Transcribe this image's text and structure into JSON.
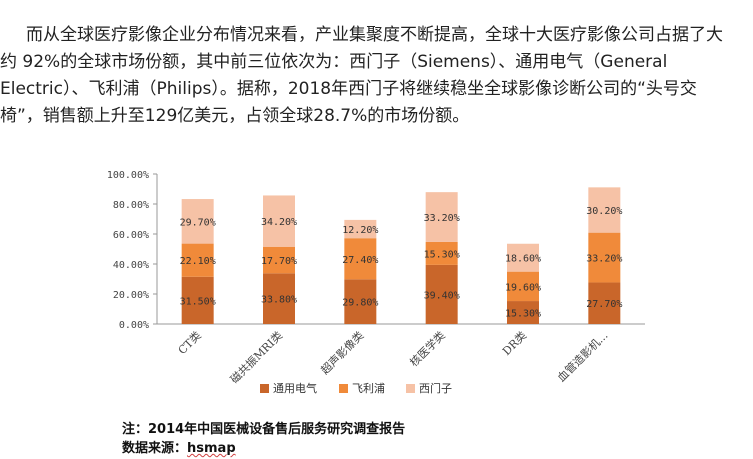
{
  "paragraph": {
    "lines": [
      "而从全球医疗影像企业分布情况来看，产业集聚度不断提高，全球十大医疗影像公司占据了大",
      "约 92%的全球市场份额，其中前三位依次为：西门子（Siemens）、通用电气（General",
      "Electric）、飞利浦（Philips）。据称，2018年西门子将继续稳坐全球影像诊断公司的“头号交",
      "椅”，销售额上升至129亿美元，占领全球28.7%的市场份额。"
    ]
  },
  "chart_data": {
    "type": "bar",
    "stacked": true,
    "categories": [
      "CT类",
      "磁共振MRI类",
      "超声影像类",
      "核医学类",
      "DR类",
      "血管造影机..."
    ],
    "series": [
      {
        "name": "通用电气",
        "color": "#c9662a",
        "values": [
          31.5,
          33.8,
          29.8,
          39.4,
          15.3,
          27.7
        ],
        "labels": [
          "31.50%",
          "33.80%",
          "29.80%",
          "39.40%",
          "15.30%",
          "27.70%"
        ]
      },
      {
        "name": "飞利浦",
        "color": "#f08a3a",
        "values": [
          22.1,
          17.7,
          27.4,
          15.3,
          19.6,
          33.2
        ],
        "labels": [
          "22.10%",
          "17.70%",
          "27.40%",
          "15.30%",
          "19.60%",
          "33.20%"
        ]
      },
      {
        "name": "西门子",
        "color": "#f6c2a6",
        "values": [
          29.7,
          34.2,
          12.2,
          33.2,
          18.6,
          30.2
        ],
        "labels": [
          "29.70%",
          "34.20%",
          "12.20%",
          "33.20%",
          "18.60%",
          "30.20%"
        ]
      }
    ],
    "y_ticks": [
      "0.00%",
      "20.00%",
      "40.00%",
      "60.00%",
      "80.00%",
      "100.00%"
    ],
    "ylim": [
      0,
      100
    ],
    "grid": false,
    "legend_position": "bottom"
  },
  "notes": {
    "line1": "注：2014年中国医械设备售后服务研究调查报告",
    "line2_prefix": "数据来源：",
    "line2_source": "hsmap"
  }
}
